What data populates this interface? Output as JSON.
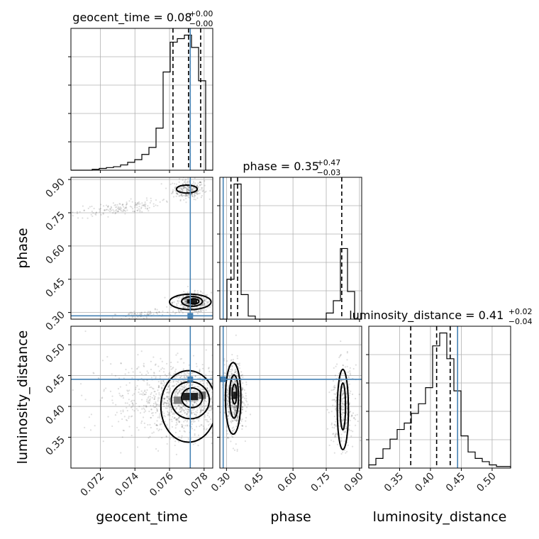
{
  "chart_data": {
    "type": "corner",
    "truth_color": "#4682b4",
    "hist_color": "#000000",
    "grid": true,
    "params": [
      {
        "key": "geocent_time",
        "label": "geocent_time",
        "title_main": "geocent_time = 0.08",
        "title_sup": "+0.00",
        "title_sub": "−0.00",
        "range": [
          0.0703,
          0.0785
        ],
        "ticks": [
          0.072,
          0.074,
          0.076,
          0.078
        ],
        "tick_labels": [
          "0.072",
          "0.074",
          "0.076",
          "0.078"
        ],
        "truth": 0.0772,
        "quantiles": [
          0.0762,
          0.0771,
          0.0778
        ],
        "hist_bins": [
          0.0703,
          0.07071,
          0.07112,
          0.07153,
          0.07194,
          0.07235,
          0.07276,
          0.07317,
          0.07358,
          0.07399,
          0.0744,
          0.07481,
          0.07522,
          0.07563,
          0.07604,
          0.07645,
          0.07686,
          0.07727,
          0.07768,
          0.07809,
          0.0785
        ],
        "hist_counts": [
          0,
          0,
          0,
          0.5,
          1,
          1.5,
          2,
          3,
          4.5,
          6,
          9,
          13,
          24,
          56,
          73,
          75,
          77,
          70,
          51,
          0
        ]
      },
      {
        "key": "phase",
        "label": "phase",
        "title_main": "phase = 0.35",
        "title_sup": "+0.47",
        "title_sub": "−0.03",
        "range": [
          0.27,
          0.91
        ],
        "ticks": [
          0.3,
          0.45,
          0.6,
          0.75,
          0.9
        ],
        "tick_labels": [
          "0.30",
          "0.45",
          "0.60",
          "0.75",
          "0.90"
        ],
        "truth": 0.285,
        "quantiles": [
          0.32,
          0.35,
          0.82
        ],
        "hist_bins": [
          0.27,
          0.302,
          0.334,
          0.366,
          0.398,
          0.43,
          0.462,
          0.494,
          0.526,
          0.558,
          0.59,
          0.622,
          0.654,
          0.686,
          0.718,
          0.75,
          0.782,
          0.814,
          0.846,
          0.878,
          0.91
        ],
        "hist_counts": [
          0,
          13,
          44,
          8,
          1,
          0,
          0,
          0,
          0,
          0,
          0,
          0,
          0,
          0,
          0,
          2,
          6,
          23,
          9,
          0
        ]
      },
      {
        "key": "luminosity_distance",
        "label": "luminosity_distance",
        "title_main": "luminosity_distance = 0.41",
        "title_sup": "+0.02",
        "title_sub": "−0.04",
        "range": [
          0.3,
          0.53
        ],
        "ticks": [
          0.35,
          0.4,
          0.45,
          0.5
        ],
        "tick_labels": [
          "0.35",
          "0.40",
          "0.45",
          "0.50"
        ],
        "truth": 0.444,
        "quantiles": [
          0.368,
          0.41,
          0.432
        ],
        "hist_bins": [
          0.3,
          0.3115,
          0.323,
          0.3345,
          0.346,
          0.3575,
          0.369,
          0.3805,
          0.392,
          0.4035,
          0.415,
          0.4265,
          0.438,
          0.4495,
          0.461,
          0.4725,
          0.484,
          0.4955,
          0.507,
          0.5185,
          0.53
        ],
        "hist_counts": [
          1,
          3,
          6,
          9,
          12,
          14,
          17,
          20,
          25,
          38,
          42,
          34,
          24,
          10,
          5,
          3,
          2,
          1,
          0.5,
          0.5
        ]
      }
    ],
    "panels_2d": [
      {
        "x": "geocent_time",
        "y": "phase",
        "clusters": [
          {
            "x": 0.0771,
            "y": 0.855,
            "sx": 0.00045,
            "sy": 0.022,
            "n": 260
          },
          {
            "x": 0.0773,
            "y": 0.345,
            "sx": 0.00055,
            "sy": 0.022,
            "n": 420
          },
          {
            "x": 0.073,
            "y": 0.77,
            "sx": 0.0012,
            "sy": 0.015,
            "n": 160,
            "slope": 45
          },
          {
            "x": 0.0745,
            "y": 0.29,
            "sx": 0.0008,
            "sy": 0.01,
            "n": 80,
            "slope": 25
          }
        ],
        "contours": [
          {
            "cx": 0.077,
            "cy": 0.857,
            "rx": 0.0006,
            "ry": 0.018
          },
          {
            "cx": 0.0772,
            "cy": 0.348,
            "rx": 0.0012,
            "ry": 0.035
          },
          {
            "cx": 0.0773,
            "cy": 0.35,
            "rx": 0.0006,
            "ry": 0.022
          },
          {
            "cx": 0.0774,
            "cy": 0.35,
            "rx": 0.0003,
            "ry": 0.012
          }
        ],
        "blocks": [
          {
            "x": 0.0773,
            "y": 0.35,
            "w": 0.0006,
            "h": 0.02,
            "shade": 0.05
          }
        ]
      },
      {
        "x": "geocent_time",
        "y": "luminosity_distance",
        "clusters": [
          {
            "x": 0.077,
            "y": 0.41,
            "sx": 0.0013,
            "sy": 0.028,
            "n": 900
          },
          {
            "x": 0.0755,
            "y": 0.415,
            "sx": 0.0022,
            "sy": 0.03,
            "n": 320
          }
        ],
        "contours": [
          {
            "cx": 0.0771,
            "cy": 0.4,
            "rx": 0.0016,
            "ry": 0.058
          },
          {
            "cx": 0.0772,
            "cy": 0.41,
            "rx": 0.0011,
            "ry": 0.03
          },
          {
            "cx": 0.0773,
            "cy": 0.414,
            "rx": 0.0006,
            "ry": 0.016
          }
        ],
        "blocks": [
          {
            "x": 0.0772,
            "y": 0.416,
            "w": 0.0009,
            "h": 0.012,
            "shade": 0.05
          },
          {
            "x": 0.0765,
            "y": 0.41,
            "w": 0.0005,
            "h": 0.012,
            "shade": 0.45
          },
          {
            "x": 0.0779,
            "y": 0.418,
            "w": 0.0004,
            "h": 0.012,
            "shade": 0.35
          }
        ]
      },
      {
        "x": "phase",
        "y": "luminosity_distance",
        "clusters": [
          {
            "x": 0.335,
            "y": 0.415,
            "sx": 0.022,
            "sy": 0.028,
            "n": 650
          },
          {
            "x": 0.825,
            "y": 0.4,
            "sx": 0.025,
            "sy": 0.032,
            "n": 420
          }
        ],
        "contours": [
          {
            "cx": 0.33,
            "cy": 0.413,
            "rx": 0.035,
            "ry": 0.058
          },
          {
            "cx": 0.334,
            "cy": 0.416,
            "rx": 0.02,
            "ry": 0.035
          },
          {
            "cx": 0.336,
            "cy": 0.42,
            "rx": 0.01,
            "ry": 0.016
          },
          {
            "cx": 0.825,
            "cy": 0.395,
            "rx": 0.025,
            "ry": 0.065
          },
          {
            "cx": 0.825,
            "cy": 0.4,
            "rx": 0.012,
            "ry": 0.038
          }
        ],
        "blocks": [
          {
            "x": 0.338,
            "y": 0.418,
            "w": 0.016,
            "h": 0.012,
            "shade": 0.05
          },
          {
            "x": 0.318,
            "y": 0.425,
            "w": 0.016,
            "h": 0.012,
            "shade": 0.5
          }
        ]
      }
    ]
  }
}
